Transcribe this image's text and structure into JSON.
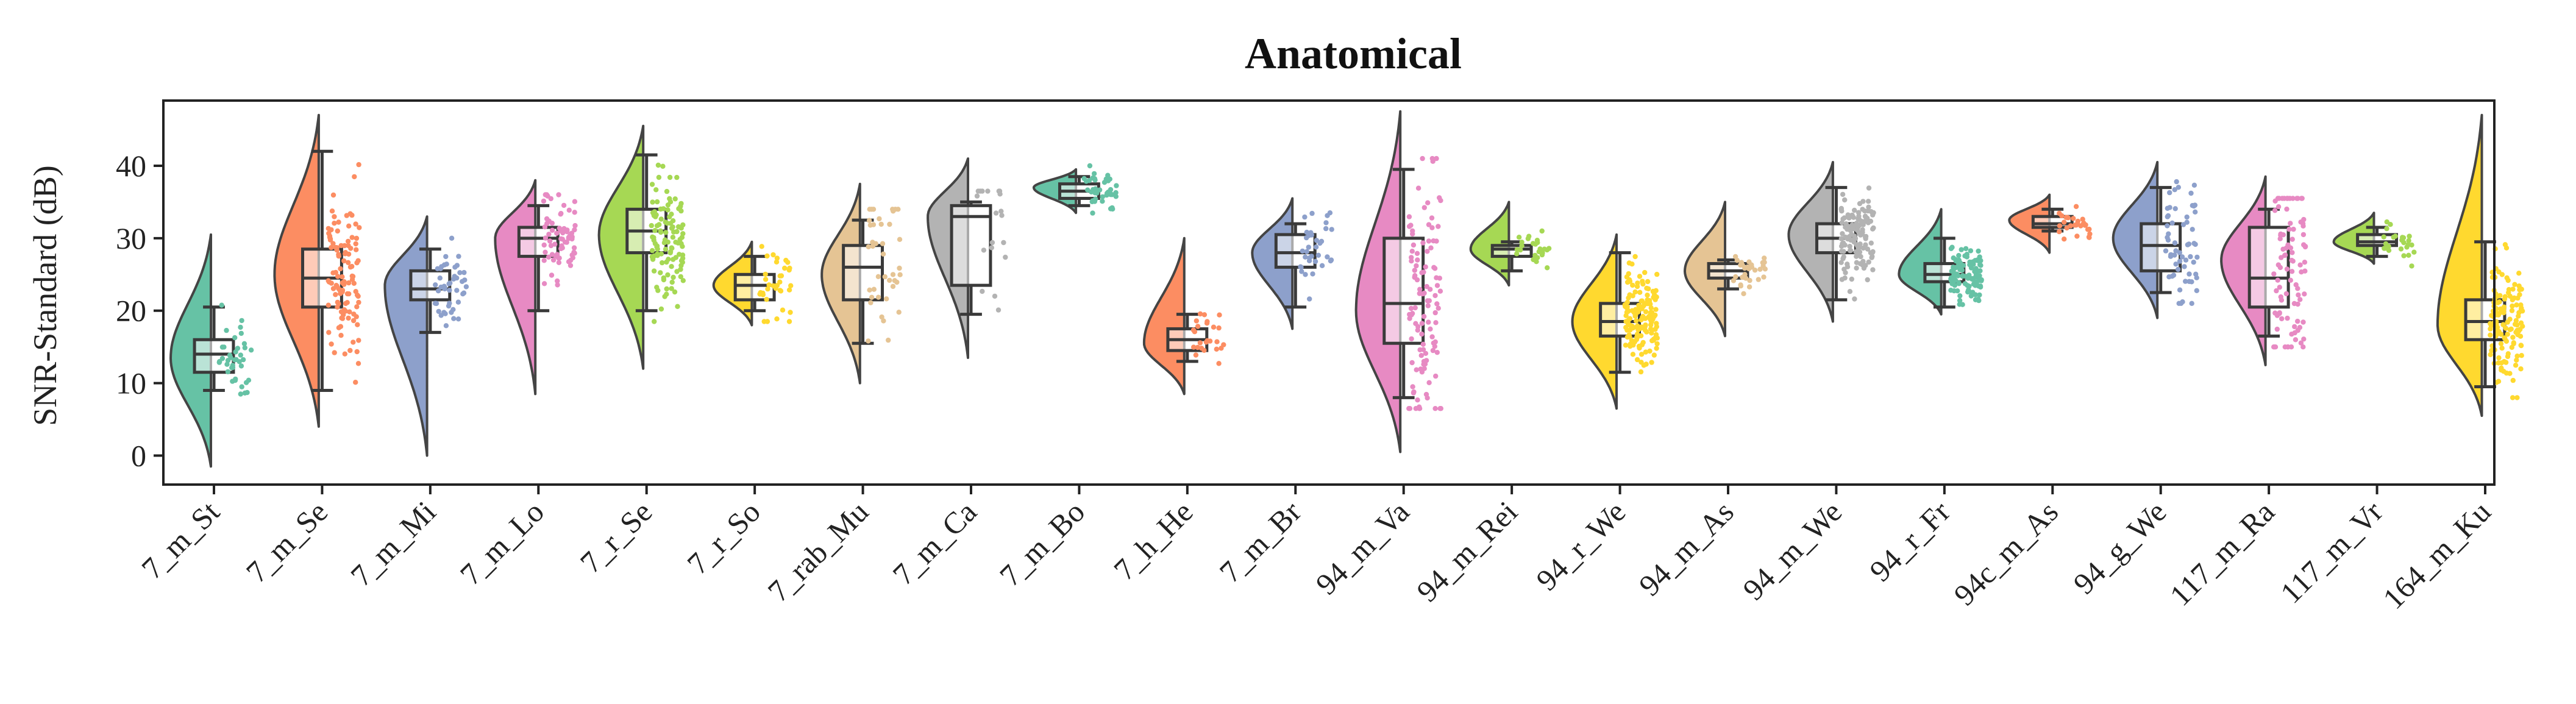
{
  "chart_data": {
    "type": "violin",
    "title": "Anatomical",
    "ylabel": "SNR-Standard (dB)",
    "xlabel": "",
    "ylim": [
      -4,
      49
    ],
    "yticks": [
      0,
      10,
      20,
      30,
      40
    ],
    "grid": false,
    "legend": "none",
    "categories": [
      {
        "label": "7_m_St",
        "color": "#66c2a5",
        "q1": 11.5,
        "median": 14.0,
        "q3": 16.0,
        "wlo": 9.0,
        "whi": 20.5,
        "vmin": -1.5,
        "vmax": 30.5,
        "mode": 13.5,
        "maxw": 0.4,
        "n": 40
      },
      {
        "label": "7_m_Se",
        "color": "#fc8d62",
        "q1": 20.5,
        "median": 24.5,
        "q3": 28.5,
        "wlo": 9.0,
        "whi": 42.0,
        "vmin": 4.0,
        "vmax": 47.0,
        "mode": 25.0,
        "maxw": 0.44,
        "n": 110
      },
      {
        "label": "7_m_Mi",
        "color": "#8da0cb",
        "q1": 21.5,
        "median": 23.0,
        "q3": 25.5,
        "wlo": 17.0,
        "whi": 28.5,
        "vmin": 0.0,
        "vmax": 33.0,
        "mode": 23.5,
        "maxw": 0.42,
        "n": 45
      },
      {
        "label": "7_m_Lo",
        "color": "#e78ac3",
        "q1": 27.5,
        "median": 30.0,
        "q3": 31.5,
        "wlo": 20.0,
        "whi": 34.5,
        "vmin": 8.5,
        "vmax": 38.0,
        "mode": 30.0,
        "maxw": 0.4,
        "n": 70
      },
      {
        "label": "7_r_Se",
        "color": "#a6d854",
        "q1": 28.0,
        "median": 31.0,
        "q3": 34.0,
        "wlo": 20.0,
        "whi": 41.5,
        "vmin": 12.0,
        "vmax": 45.5,
        "mode": 30.5,
        "maxw": 0.44,
        "n": 110
      },
      {
        "label": "7_r_So",
        "color": "#ffd92f",
        "q1": 21.5,
        "median": 23.5,
        "q3": 25.0,
        "wlo": 20.0,
        "whi": 27.5,
        "vmin": 18.0,
        "vmax": 29.5,
        "mode": 23.5,
        "maxw": 0.38,
        "n": 35
      },
      {
        "label": "7_rab_Mu",
        "color": "#e5c494",
        "q1": 21.5,
        "median": 26.0,
        "q3": 29.0,
        "wlo": 15.5,
        "whi": 32.5,
        "vmin": 10.0,
        "vmax": 37.5,
        "mode": 25.0,
        "maxw": 0.38,
        "n": 40
      },
      {
        "label": "7_m_Ca",
        "color": "#b3b3b3",
        "q1": 23.5,
        "median": 33.0,
        "q3": 34.5,
        "wlo": 19.5,
        "whi": 35.0,
        "vmin": 13.5,
        "vmax": 41.0,
        "mode": 33.0,
        "maxw": 0.4,
        "n": 20
      },
      {
        "label": "7_m_Bo",
        "color": "#66c2a5",
        "q1": 35.5,
        "median": 36.5,
        "q3": 37.5,
        "wlo": 34.5,
        "whi": 38.5,
        "vmin": 33.5,
        "vmax": 39.5,
        "mode": 37.0,
        "maxw": 0.42,
        "n": 40
      },
      {
        "label": "7_h_He",
        "color": "#fc8d62",
        "q1": 14.5,
        "median": 16.0,
        "q3": 17.5,
        "wlo": 13.0,
        "whi": 19.5,
        "vmin": 8.5,
        "vmax": 30.0,
        "mode": 15.5,
        "maxw": 0.4,
        "n": 25
      },
      {
        "label": "7_m_Br",
        "color": "#8da0cb",
        "q1": 26.0,
        "median": 28.0,
        "q3": 30.5,
        "wlo": 20.5,
        "whi": 32.0,
        "vmin": 17.5,
        "vmax": 35.5,
        "mode": 28.0,
        "maxw": 0.4,
        "n": 35
      },
      {
        "label": "94_m_Va",
        "color": "#e78ac3",
        "q1": 15.5,
        "median": 21.0,
        "q3": 30.0,
        "wlo": 8.0,
        "whi": 39.5,
        "vmin": 0.5,
        "vmax": 47.5,
        "mode": 20.0,
        "maxw": 0.44,
        "n": 110
      },
      {
        "label": "94_m_Rei",
        "color": "#a6d854",
        "q1": 27.5,
        "median": 28.5,
        "q3": 29.0,
        "wlo": 25.5,
        "whi": 29.5,
        "vmin": 23.5,
        "vmax": 35.0,
        "mode": 28.5,
        "maxw": 0.38,
        "n": 25
      },
      {
        "label": "94_r_We",
        "color": "#ffd92f",
        "q1": 16.5,
        "median": 18.5,
        "q3": 21.0,
        "wlo": 11.5,
        "whi": 28.0,
        "vmin": 6.5,
        "vmax": 30.5,
        "mode": 18.5,
        "maxw": 0.44,
        "n": 150
      },
      {
        "label": "94_m_As",
        "color": "#e5c494",
        "q1": 24.5,
        "median": 25.5,
        "q3": 26.5,
        "wlo": 23.0,
        "whi": 27.0,
        "vmin": 16.5,
        "vmax": 35.0,
        "mode": 25.5,
        "maxw": 0.4,
        "n": 30
      },
      {
        "label": "94_m_We",
        "color": "#b3b3b3",
        "q1": 28.0,
        "median": 30.0,
        "q3": 32.0,
        "wlo": 21.5,
        "whi": 37.0,
        "vmin": 18.5,
        "vmax": 40.5,
        "mode": 30.5,
        "maxw": 0.44,
        "n": 130
      },
      {
        "label": "94_r_Fr",
        "color": "#66c2a5",
        "q1": 24.0,
        "median": 25.0,
        "q3": 26.5,
        "wlo": 20.5,
        "whi": 30.0,
        "vmin": 19.5,
        "vmax": 34.0,
        "mode": 25.0,
        "maxw": 0.42,
        "n": 110
      },
      {
        "label": "94c_m_As",
        "color": "#fc8d62",
        "q1": 31.5,
        "median": 32.0,
        "q3": 33.0,
        "wlo": 31.0,
        "whi": 34.0,
        "vmin": 28.0,
        "vmax": 36.0,
        "mode": 32.5,
        "maxw": 0.4,
        "n": 30
      },
      {
        "label": "94_g_We",
        "color": "#8da0cb",
        "q1": 25.5,
        "median": 29.0,
        "q3": 32.0,
        "wlo": 22.5,
        "whi": 37.0,
        "vmin": 19.0,
        "vmax": 40.5,
        "mode": 30.0,
        "maxw": 0.44,
        "n": 60
      },
      {
        "label": "117_m_Ra",
        "color": "#e78ac3",
        "q1": 20.5,
        "median": 24.5,
        "q3": 31.5,
        "wlo": 16.5,
        "whi": 34.0,
        "vmin": 12.5,
        "vmax": 38.5,
        "mode": 27.0,
        "maxw": 0.44,
        "n": 90
      },
      {
        "label": "117_m_Vr",
        "color": "#a6d854",
        "q1": 29.0,
        "median": 29.5,
        "q3": 30.5,
        "wlo": 27.5,
        "whi": 31.5,
        "vmin": 26.5,
        "vmax": 33.5,
        "mode": 29.5,
        "maxw": 0.4,
        "n": 25
      },
      {
        "label": "164_m_Ku",
        "color": "#ffd92f",
        "q1": 16.0,
        "median": 18.5,
        "q3": 21.5,
        "wlo": 9.5,
        "whi": 29.5,
        "vmin": 5.5,
        "vmax": 47.0,
        "mode": 18.0,
        "maxw": 0.44,
        "n": 130
      }
    ]
  }
}
